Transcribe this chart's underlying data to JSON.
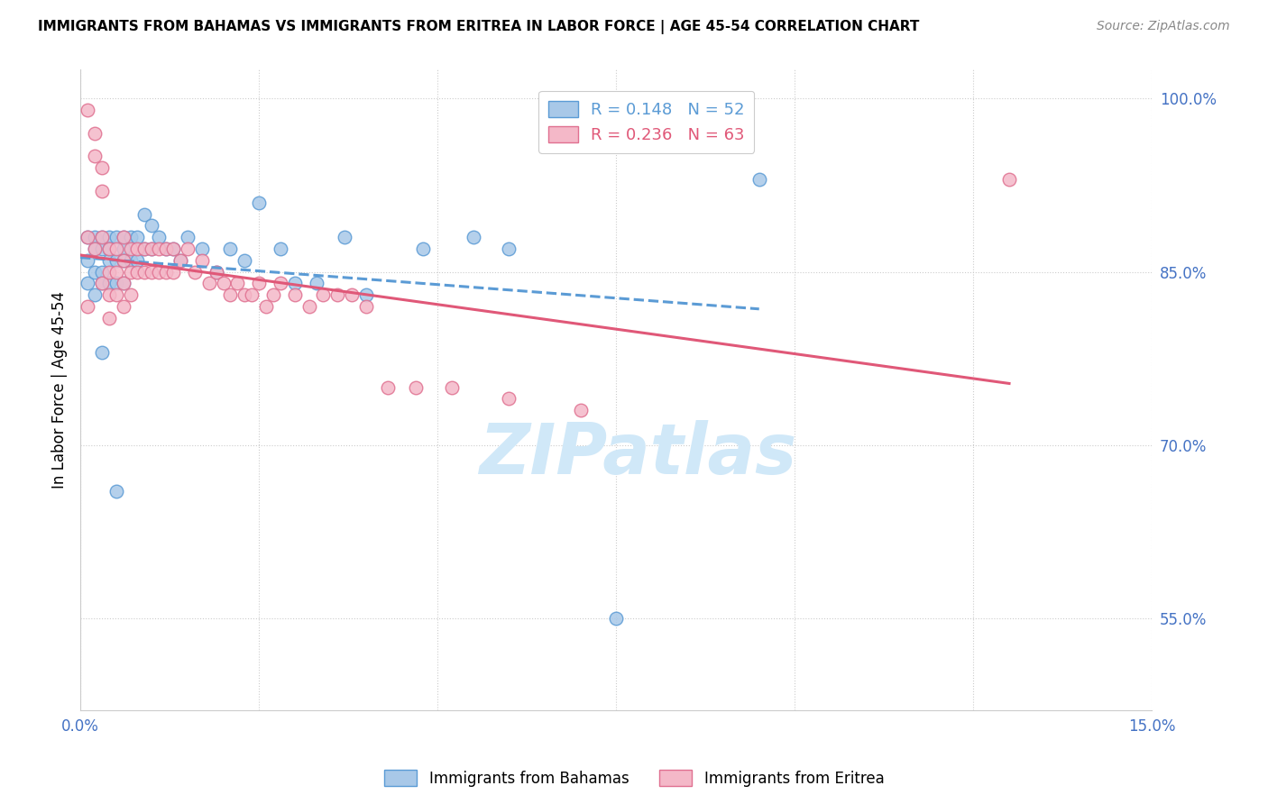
{
  "title": "IMMIGRANTS FROM BAHAMAS VS IMMIGRANTS FROM ERITREA IN LABOR FORCE | AGE 45-54 CORRELATION CHART",
  "source": "Source: ZipAtlas.com",
  "ylabel": "In Labor Force | Age 45-54",
  "xlim": [
    0.0,
    0.15
  ],
  "ylim": [
    0.47,
    1.025
  ],
  "xticks": [
    0.0,
    0.025,
    0.05,
    0.075,
    0.1,
    0.125,
    0.15
  ],
  "xticklabels": [
    "0.0%",
    "",
    "",
    "",
    "",
    "",
    "15.0%"
  ],
  "yticks": [
    0.55,
    0.7,
    0.85,
    1.0
  ],
  "yticklabels": [
    "55.0%",
    "70.0%",
    "85.0%",
    "100.0%"
  ],
  "R_bahamas": 0.148,
  "N_bahamas": 52,
  "R_eritrea": 0.236,
  "N_eritrea": 63,
  "color_bahamas": "#a8c8e8",
  "color_eritrea": "#f4b8c8",
  "edge_bahamas": "#5b9bd5",
  "edge_eritrea": "#e07090",
  "line_color_bahamas": "#5b9bd5",
  "line_color_eritrea": "#e05878",
  "watermark_color": "#d0e8f8",
  "bahamas_x": [
    0.001,
    0.001,
    0.001,
    0.002,
    0.002,
    0.002,
    0.002,
    0.003,
    0.003,
    0.003,
    0.003,
    0.004,
    0.004,
    0.004,
    0.004,
    0.005,
    0.005,
    0.005,
    0.006,
    0.006,
    0.006,
    0.006,
    0.007,
    0.007,
    0.008,
    0.008,
    0.009,
    0.009,
    0.01,
    0.01,
    0.011,
    0.012,
    0.013,
    0.014,
    0.015,
    0.017,
    0.019,
    0.021,
    0.023,
    0.025,
    0.028,
    0.03,
    0.033,
    0.037,
    0.04,
    0.048,
    0.055,
    0.06,
    0.075,
    0.095,
    0.003,
    0.005
  ],
  "bahamas_y": [
    0.88,
    0.86,
    0.84,
    0.88,
    0.87,
    0.85,
    0.83,
    0.88,
    0.87,
    0.85,
    0.84,
    0.88,
    0.87,
    0.86,
    0.84,
    0.88,
    0.86,
    0.84,
    0.88,
    0.87,
    0.86,
    0.84,
    0.88,
    0.86,
    0.88,
    0.86,
    0.9,
    0.87,
    0.89,
    0.87,
    0.88,
    0.87,
    0.87,
    0.86,
    0.88,
    0.87,
    0.85,
    0.87,
    0.86,
    0.91,
    0.87,
    0.84,
    0.84,
    0.88,
    0.83,
    0.87,
    0.88,
    0.87,
    0.55,
    0.93,
    0.78,
    0.66
  ],
  "eritrea_x": [
    0.001,
    0.001,
    0.002,
    0.002,
    0.003,
    0.003,
    0.003,
    0.003,
    0.004,
    0.004,
    0.004,
    0.004,
    0.005,
    0.005,
    0.005,
    0.006,
    0.006,
    0.006,
    0.006,
    0.007,
    0.007,
    0.007,
    0.008,
    0.008,
    0.009,
    0.009,
    0.01,
    0.01,
    0.011,
    0.011,
    0.012,
    0.012,
    0.013,
    0.013,
    0.014,
    0.015,
    0.016,
    0.017,
    0.018,
    0.019,
    0.02,
    0.021,
    0.022,
    0.023,
    0.024,
    0.025,
    0.026,
    0.027,
    0.028,
    0.03,
    0.032,
    0.034,
    0.036,
    0.038,
    0.04,
    0.043,
    0.047,
    0.052,
    0.06,
    0.07,
    0.001,
    0.002,
    0.13
  ],
  "eritrea_y": [
    0.88,
    0.82,
    0.97,
    0.87,
    0.94,
    0.92,
    0.88,
    0.84,
    0.87,
    0.85,
    0.83,
    0.81,
    0.87,
    0.85,
    0.83,
    0.88,
    0.86,
    0.84,
    0.82,
    0.87,
    0.85,
    0.83,
    0.87,
    0.85,
    0.87,
    0.85,
    0.87,
    0.85,
    0.87,
    0.85,
    0.87,
    0.85,
    0.87,
    0.85,
    0.86,
    0.87,
    0.85,
    0.86,
    0.84,
    0.85,
    0.84,
    0.83,
    0.84,
    0.83,
    0.83,
    0.84,
    0.82,
    0.83,
    0.84,
    0.83,
    0.82,
    0.83,
    0.83,
    0.83,
    0.82,
    0.75,
    0.75,
    0.75,
    0.74,
    0.73,
    0.99,
    0.95,
    0.93
  ]
}
